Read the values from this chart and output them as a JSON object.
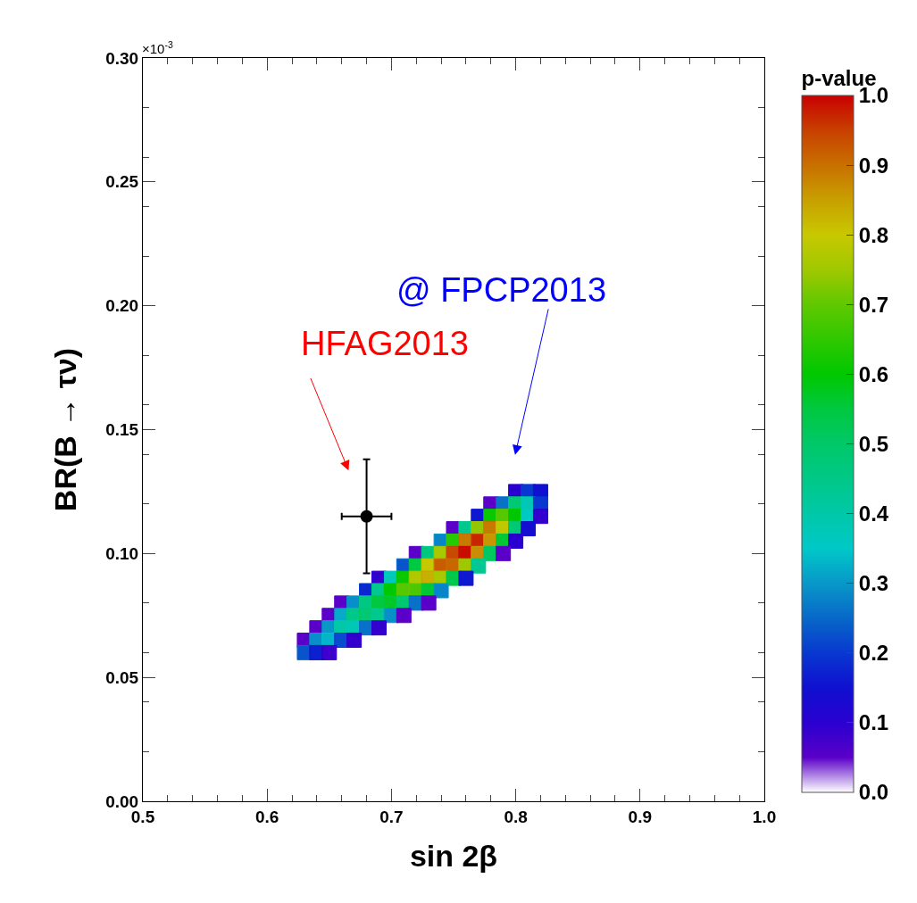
{
  "chart_data": {
    "type": "scatter",
    "xlabel": "sin 2β",
    "ylabel": "BR(B → τν)",
    "clabel": "p-value",
    "xlim": [
      0.5,
      1.0
    ],
    "xticks": [
      0.5,
      0.6,
      0.7,
      0.8,
      0.9,
      {
        "value": 1.0,
        "label": "1.0"
      }
    ],
    "ylim": [
      0,
      0.3
    ],
    "yticks": [
      {
        "value": 0,
        "label": "0.00"
      },
      0.05,
      {
        "value": 0.1,
        "label": "0.10"
      },
      0.15,
      {
        "value": 0.2,
        "label": "0.20"
      },
      0.25,
      {
        "value": 0.3,
        "label": "0.30"
      }
    ],
    "clim": [
      0,
      1
    ],
    "cticks": [
      {
        "value": 0,
        "label": "0.0"
      },
      0.1,
      0.2,
      0.3,
      0.4,
      0.5,
      0.6,
      0.7,
      0.8,
      0.9,
      {
        "value": 1,
        "label": "1.0"
      }
    ],
    "grid": false,
    "legend": false,
    "marker": "circle",
    "annotations": [
      "×10$^{-3}$",
      "HFAG2013",
      "@ FPCP2013"
    ],
    "series": [
      {
        "marker": "square",
        "colors": [
          "#2a00d0",
          "#0838d0",
          "#1010d0",
          "#5a00c8",
          "#0868c8",
          "#00c868",
          "#00c8a8",
          "#0838d0",
          "#1010d0",
          "#00c800",
          "#60c800",
          "#00c800",
          "#00c8c8",
          "#2a00d0",
          "#5a00c8",
          "#00c888",
          "#a0c800",
          "#c87000",
          "#c8c800",
          "#00c868",
          "#1010d0",
          "#0898c8",
          "#30c800",
          "#c87000",
          "#c84000",
          "#c8a000",
          "#00c840",
          "#2a00d0",
          "#5a00c8",
          "#00c888",
          "#a0c800",
          "#c84000",
          "#c80000",
          "#c8a000",
          "#00c868",
          "#5a00c8",
          "#0868c8",
          "#00c840",
          "#c8c800",
          "#c87000",
          "#c87000",
          "#a0c800",
          "#00c888",
          "#2a00d0",
          "#00c8c8",
          "#00c800",
          "#a0c800",
          "#c8a000",
          "#a0c800",
          "#00c840",
          "#1010d0",
          "#0838d0",
          "#00c888",
          "#00c800",
          "#60c800",
          "#60c800",
          "#00c840",
          "#0898c8",
          "#5a00c8",
          "#0898c8",
          "#00c888",
          "#00c840",
          "#00c840",
          "#00c868",
          "#0868c8",
          "#5a00c8",
          "#5a00c8",
          "#0898c8",
          "#00c888",
          "#00c868",
          "#00c888",
          "#0898c8",
          "#5a00c8",
          "#5a00c8",
          "#0898c8",
          "#00c8a8",
          "#00c8a8",
          "#0868c8",
          "#2a00d0",
          "#5a00c8",
          "#0898c8",
          "#00c8c8",
          "#0838d0",
          "#2a00d0",
          "#0868c8",
          "#1010d0",
          "#2a00d0"
        ],
        "x": [
          0.8,
          0.81,
          0.82,
          0.78,
          0.79,
          0.8,
          0.81,
          0.82,
          0.77,
          0.78,
          0.79,
          0.8,
          0.81,
          0.82,
          0.75,
          0.76,
          0.77,
          0.78,
          0.79,
          0.8,
          0.81,
          0.74,
          0.75,
          0.76,
          0.77,
          0.78,
          0.79,
          0.8,
          0.72,
          0.73,
          0.74,
          0.75,
          0.76,
          0.77,
          0.78,
          0.79,
          0.71,
          0.72,
          0.73,
          0.74,
          0.75,
          0.76,
          0.77,
          0.69,
          0.7,
          0.71,
          0.72,
          0.73,
          0.74,
          0.75,
          0.76,
          0.68,
          0.69,
          0.7,
          0.71,
          0.72,
          0.73,
          0.74,
          0.66,
          0.67,
          0.68,
          0.69,
          0.7,
          0.71,
          0.72,
          0.73,
          0.65,
          0.66,
          0.67,
          0.68,
          0.69,
          0.7,
          0.71,
          0.64,
          0.65,
          0.66,
          0.67,
          0.68,
          0.69,
          0.63,
          0.64,
          0.65,
          0.66,
          0.67,
          0.63,
          0.64,
          0.65
        ],
        "values": [
          0.125,
          0.125,
          0.125,
          0.12,
          0.12,
          0.12,
          0.12,
          0.12,
          0.115,
          0.115,
          0.115,
          0.115,
          0.115,
          0.115,
          0.11,
          0.11,
          0.11,
          0.11,
          0.11,
          0.11,
          0.11,
          0.105,
          0.105,
          0.105,
          0.105,
          0.105,
          0.105,
          0.105,
          0.1,
          0.1,
          0.1,
          0.1,
          0.1,
          0.1,
          0.1,
          0.1,
          0.095,
          0.095,
          0.095,
          0.095,
          0.095,
          0.095,
          0.095,
          0.09,
          0.09,
          0.09,
          0.09,
          0.09,
          0.09,
          0.09,
          0.09,
          0.085,
          0.085,
          0.085,
          0.085,
          0.085,
          0.085,
          0.085,
          0.08,
          0.08,
          0.08,
          0.08,
          0.08,
          0.08,
          0.08,
          0.08,
          0.075,
          0.075,
          0.075,
          0.075,
          0.075,
          0.075,
          0.075,
          0.07,
          0.07,
          0.07,
          0.07,
          0.07,
          0.07,
          0.065,
          0.065,
          0.065,
          0.065,
          0.065,
          0.06,
          0.06,
          0.06
        ],
        "cvalues": [
          0.1,
          0.2,
          0.15,
          0.05,
          0.26,
          0.48,
          0.38,
          0.2,
          0.16,
          0.61,
          0.69,
          0.6,
          0.36,
          0.09,
          0.05,
          0.44,
          0.74,
          0.89,
          0.79,
          0.48,
          0.14,
          0.28,
          0.64,
          0.89,
          0.97,
          0.86,
          0.56,
          0.1,
          0.05,
          0.47,
          0.76,
          0.94,
          0.99,
          0.87,
          0.51,
          0.05,
          0.23,
          0.55,
          0.8,
          0.92,
          0.91,
          0.75,
          0.43,
          0.09,
          0.37,
          0.61,
          0.77,
          0.83,
          0.76,
          0.54,
          0.16,
          0.18,
          0.44,
          0.6,
          0.69,
          0.68,
          0.56,
          0.28,
          0.05,
          0.29,
          0.46,
          0.55,
          0.57,
          0.49,
          0.26,
          0.05,
          0.05,
          0.32,
          0.45,
          0.48,
          0.44,
          0.29,
          0.05,
          0.05,
          0.3,
          0.4,
          0.38,
          0.26,
          0.09,
          0.05,
          0.29,
          0.33,
          0.22,
          0.09,
          0.23,
          0.17,
          0.08
        ]
      },
      {
        "color": "#000000",
        "x": [
          0.68
        ],
        "values": [
          0.115
        ],
        "errors": [
          0.023
        ],
        "xerrors": [
          0.02
        ]
      }
    ]
  }
}
